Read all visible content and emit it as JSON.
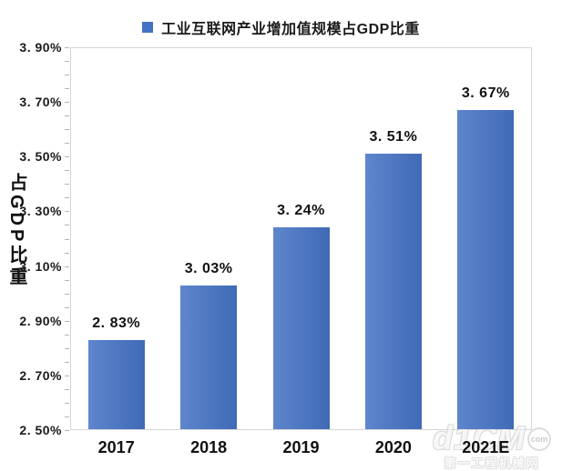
{
  "chart_data": {
    "type": "bar",
    "title": "",
    "legend_label": "工业互联网产业增加值规模占GDP比重",
    "legend_position": "top",
    "categories": [
      "2017",
      "2018",
      "2019",
      "2020",
      "2021E"
    ],
    "values": [
      2.83,
      3.03,
      3.24,
      3.51,
      3.67
    ],
    "data_labels": [
      "2. 83%",
      "3. 03%",
      "3. 24%",
      "3. 51%",
      "3. 67%"
    ],
    "xlabel": "",
    "ylabel": "占GDP比重",
    "ylim": [
      2.5,
      3.9
    ],
    "ytick_values": [
      3.9,
      3.7,
      3.5,
      3.3,
      3.1,
      2.9,
      2.7,
      2.5
    ],
    "ytick_labels": [
      "3. 90%",
      "3. 70%",
      "3. 50%",
      "3. 30%",
      "3. 10%",
      "2. 90%",
      "2. 70%",
      "2. 50%"
    ],
    "ytick_minor_step": 0.05,
    "grid": false,
    "bar_color": "#4472c4",
    "plot_border_color": "#d6d6d6",
    "text_color": "#1a1a1a"
  },
  "watermark": {
    "logo": "d1CM",
    "badge": "com",
    "caption": "第一工程机械网"
  }
}
